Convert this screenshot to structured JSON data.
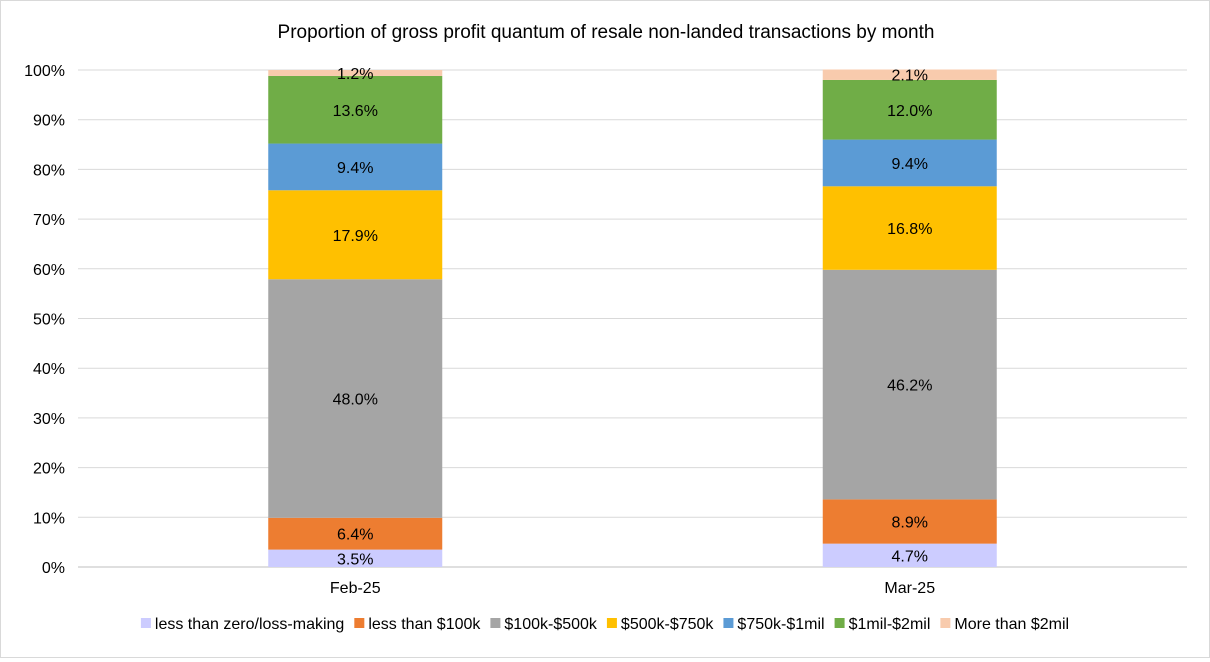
{
  "chart_data": {
    "type": "bar",
    "stacked": true,
    "title": "Proportion of gross profit quantum of resale non-landed transactions by month",
    "categories": [
      "Feb-25",
      "Mar-25"
    ],
    "series": [
      {
        "name": "less than zero/loss-making",
        "color": "#ccccff",
        "values": [
          3.5,
          4.7
        ]
      },
      {
        "name": "less than $100k",
        "color": "#ed7d31",
        "values": [
          6.4,
          8.9
        ]
      },
      {
        "name": "$100k-$500k",
        "color": "#a5a5a5",
        "values": [
          48.0,
          46.2
        ]
      },
      {
        "name": "$500k-$750k",
        "color": "#ffc000",
        "values": [
          17.9,
          16.8
        ]
      },
      {
        "name": "$750k-$1mil",
        "color": "#5b9bd5",
        "values": [
          9.4,
          9.4
        ]
      },
      {
        "name": "$1mil-$2mil",
        "color": "#70ad47",
        "values": [
          13.6,
          12.0
        ]
      },
      {
        "name": "More than $2mil",
        "color": "#f8cbad",
        "values": [
          1.2,
          2.1
        ]
      }
    ],
    "data_labels": [
      [
        "3.5%",
        "4.7%"
      ],
      [
        "6.4%",
        "8.9%"
      ],
      [
        "48.0%",
        "46.2%"
      ],
      [
        "17.9%",
        "16.8%"
      ],
      [
        "9.4%",
        "9.4%"
      ],
      [
        "13.6%",
        "12.0%"
      ],
      [
        "1.2%",
        "2.1%"
      ]
    ],
    "y_ticks": [
      "0%",
      "10%",
      "20%",
      "30%",
      "40%",
      "50%",
      "60%",
      "70%",
      "80%",
      "90%",
      "100%"
    ],
    "ylim": [
      0,
      100
    ],
    "grid": true,
    "legend_position": "bottom"
  }
}
